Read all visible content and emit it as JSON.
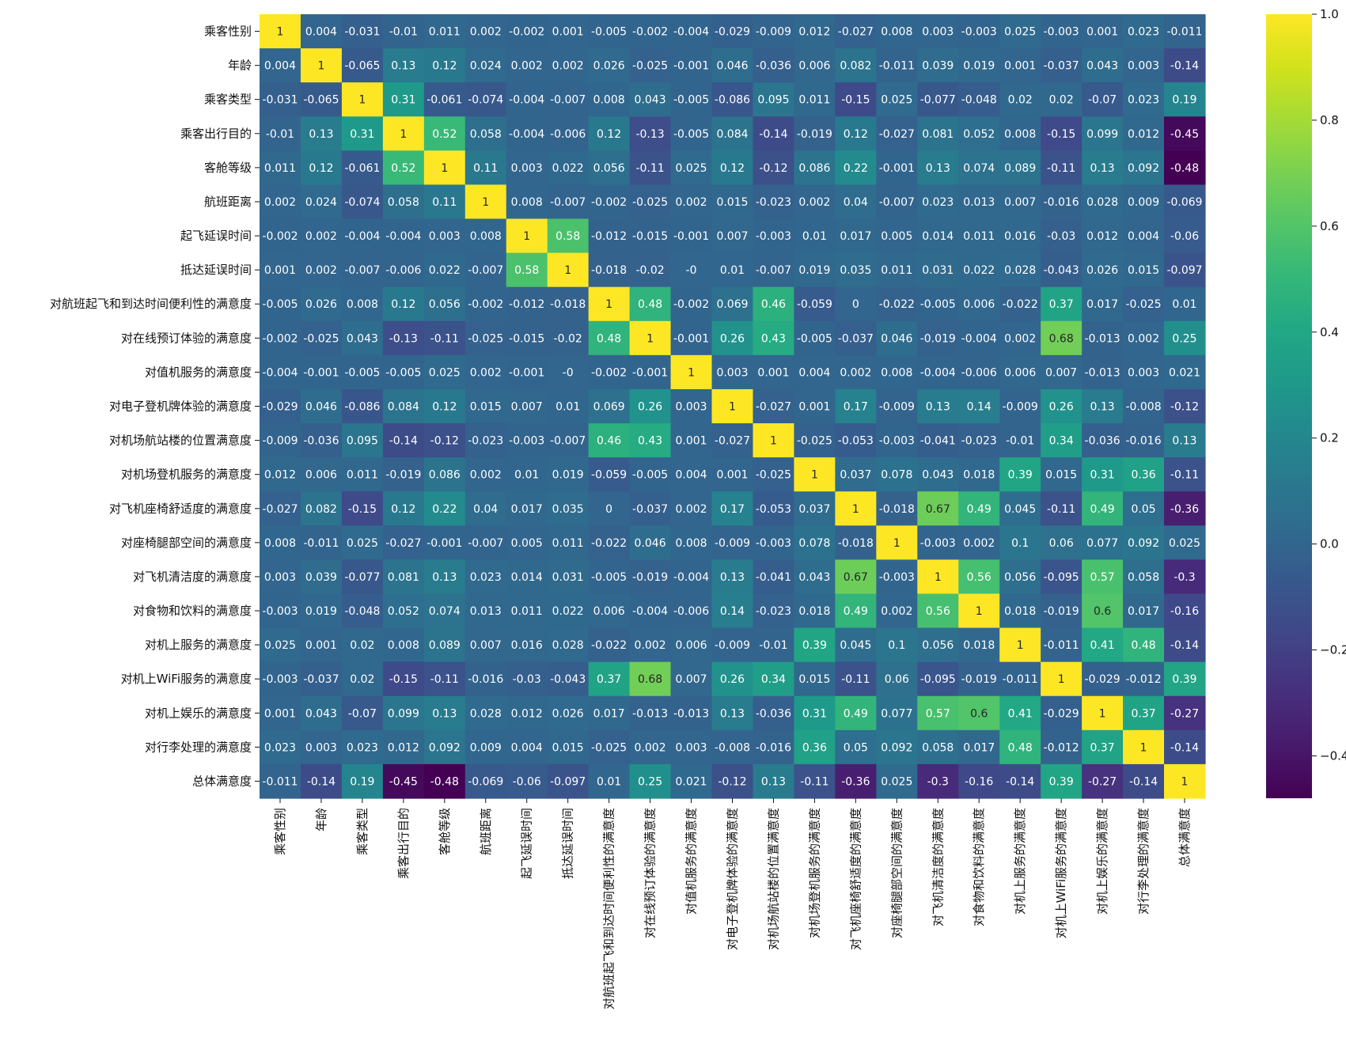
{
  "chart_data": {
    "type": "heatmap",
    "title": "",
    "labels": [
      "乘客性别",
      "年龄",
      "乘客类型",
      "乘客出行目的",
      "客舱等级",
      "航班距离",
      "起飞延误时间",
      "抵达延误时间",
      "对航班起飞和到达时间便利性的满意度",
      "对在线预订体验的满意度",
      "对值机服务的满意度",
      "对电子登机牌体验的满意度",
      "对机场航站楼的位置满意度",
      "对机场登机服务的满意度",
      "对飞机座椅舒适度的满意度",
      "对座椅腿部空间的满意度",
      "对飞机清洁度的满意度",
      "对食物和饮料的满意度",
      "对机上服务的满意度",
      "对机上WiFi服务的满意度",
      "对机上娱乐的满意度",
      "对行李处理的满意度",
      "总体满意度"
    ],
    "matrix": [
      [
        1,
        0.004,
        -0.031,
        -0.01,
        0.011,
        0.002,
        -0.002,
        0.001,
        -0.005,
        -0.002,
        -0.004,
        -0.029,
        -0.009,
        0.012,
        -0.027,
        0.008,
        0.003,
        -0.003,
        0.025,
        -0.003,
        0.001,
        0.023,
        -0.011
      ],
      [
        0.004,
        1,
        -0.065,
        0.13,
        0.12,
        0.024,
        0.002,
        0.002,
        0.026,
        -0.025,
        -0.001,
        0.046,
        -0.036,
        0.006,
        0.082,
        -0.011,
        0.039,
        0.019,
        0.001,
        -0.037,
        0.043,
        0.003,
        -0.14
      ],
      [
        -0.031,
        -0.065,
        1,
        0.31,
        -0.061,
        -0.074,
        -0.004,
        -0.007,
        0.008,
        0.043,
        -0.005,
        -0.086,
        0.095,
        0.011,
        -0.15,
        0.025,
        -0.077,
        -0.048,
        0.02,
        0.02,
        -0.07,
        0.023,
        0.19
      ],
      [
        -0.01,
        0.13,
        0.31,
        1,
        0.52,
        0.058,
        -0.004,
        -0.006,
        0.12,
        -0.13,
        -0.005,
        0.084,
        -0.14,
        -0.019,
        0.12,
        -0.027,
        0.081,
        0.052,
        0.008,
        -0.15,
        0.099,
        0.012,
        -0.45
      ],
      [
        0.011,
        0.12,
        -0.061,
        0.52,
        1,
        0.11,
        0.003,
        0.022,
        0.056,
        -0.11,
        0.025,
        0.12,
        -0.12,
        0.086,
        0.22,
        -0.001,
        0.13,
        0.074,
        0.089,
        -0.11,
        0.13,
        0.092,
        -0.48
      ],
      [
        0.002,
        0.024,
        -0.074,
        0.058,
        0.11,
        1,
        0.008,
        -0.007,
        -0.002,
        -0.025,
        0.002,
        0.015,
        -0.023,
        0.002,
        0.04,
        -0.007,
        0.023,
        0.013,
        0.007,
        -0.016,
        0.028,
        0.009,
        -0.069
      ],
      [
        -0.002,
        0.002,
        -0.004,
        -0.004,
        0.003,
        0.008,
        1,
        0.58,
        -0.012,
        -0.015,
        -0.001,
        0.007,
        -0.003,
        0.01,
        0.017,
        0.005,
        0.014,
        0.011,
        0.016,
        -0.03,
        0.012,
        0.004,
        -0.06
      ],
      [
        0.001,
        0.002,
        -0.007,
        -0.006,
        0.022,
        -0.007,
        0.58,
        1,
        -0.018,
        -0.02,
        0,
        0.01,
        -0.007,
        0.019,
        0.035,
        0.011,
        0.031,
        0.022,
        0.028,
        -0.043,
        0.026,
        0.015,
        -0.097
      ],
      [
        -0.005,
        0.026,
        0.008,
        0.12,
        0.056,
        -0.002,
        -0.012,
        -0.018,
        1,
        0.48,
        -0.002,
        0.069,
        0.46,
        -0.059,
        0,
        -0.022,
        -0.005,
        0.006,
        -0.022,
        0.37,
        0.017,
        -0.025,
        0.01
      ],
      [
        -0.002,
        -0.025,
        0.043,
        -0.13,
        -0.11,
        -0.025,
        -0.015,
        -0.02,
        0.48,
        1,
        -0.001,
        0.26,
        0.43,
        -0.005,
        -0.037,
        0.046,
        -0.019,
        -0.004,
        0.002,
        0.68,
        -0.013,
        0.002,
        0.25
      ],
      [
        -0.004,
        -0.001,
        -0.005,
        -0.005,
        0.025,
        0.002,
        -0.001,
        0,
        -0.002,
        -0.001,
        1,
        0.003,
        0.001,
        0.004,
        0.002,
        0.008,
        -0.004,
        -0.006,
        0.006,
        0.007,
        -0.013,
        0.003,
        0.021
      ],
      [
        -0.029,
        0.046,
        -0.086,
        0.084,
        0.12,
        0.015,
        0.007,
        0.01,
        0.069,
        0.26,
        0.003,
        1,
        -0.027,
        0.001,
        0.17,
        -0.009,
        0.13,
        0.14,
        -0.009,
        0.26,
        0.13,
        -0.008,
        -0.12
      ],
      [
        -0.009,
        -0.036,
        0.095,
        -0.14,
        -0.12,
        -0.023,
        -0.003,
        -0.007,
        0.46,
        0.43,
        0.001,
        -0.027,
        1,
        -0.025,
        -0.053,
        -0.003,
        -0.041,
        -0.023,
        -0.01,
        0.34,
        -0.036,
        -0.016,
        0.13
      ],
      [
        0.012,
        0.006,
        0.011,
        -0.019,
        0.086,
        0.002,
        0.01,
        0.019,
        -0.059,
        -0.005,
        0.004,
        0.001,
        -0.025,
        1,
        0.037,
        0.078,
        0.043,
        0.018,
        0.39,
        0.015,
        0.31,
        0.36,
        -0.11
      ],
      [
        -0.027,
        0.082,
        -0.15,
        0.12,
        0.22,
        0.04,
        0.017,
        0.035,
        0,
        -0.037,
        0.002,
        0.17,
        -0.053,
        0.037,
        1,
        -0.018,
        0.67,
        0.49,
        0.045,
        -0.11,
        0.49,
        0.05,
        -0.36
      ],
      [
        0.008,
        -0.011,
        0.025,
        -0.027,
        -0.001,
        -0.007,
        0.005,
        0.011,
        -0.022,
        0.046,
        0.008,
        -0.009,
        -0.003,
        0.078,
        -0.018,
        1,
        -0.003,
        0.002,
        0.1,
        0.06,
        0.077,
        0.092,
        0.025
      ],
      [
        0.003,
        0.039,
        -0.077,
        0.081,
        0.13,
        0.023,
        0.014,
        0.031,
        -0.005,
        -0.019,
        -0.004,
        0.13,
        -0.041,
        0.043,
        0.67,
        -0.003,
        1,
        0.56,
        0.056,
        -0.095,
        0.57,
        0.058,
        -0.3
      ],
      [
        -0.003,
        0.019,
        -0.048,
        0.052,
        0.074,
        0.013,
        0.011,
        0.022,
        0.006,
        -0.004,
        -0.006,
        0.14,
        -0.023,
        0.018,
        0.49,
        0.002,
        0.56,
        1,
        0.018,
        -0.019,
        0.6,
        0.017,
        -0.16
      ],
      [
        0.025,
        0.001,
        0.02,
        0.008,
        0.089,
        0.007,
        0.016,
        0.028,
        -0.022,
        0.002,
        0.006,
        -0.009,
        -0.01,
        0.39,
        0.045,
        0.1,
        0.056,
        0.018,
        1,
        -0.011,
        0.41,
        0.48,
        -0.14
      ],
      [
        -0.003,
        -0.037,
        0.02,
        -0.15,
        -0.11,
        -0.016,
        -0.03,
        -0.043,
        0.37,
        0.68,
        0.007,
        0.26,
        0.34,
        0.015,
        -0.11,
        0.06,
        -0.095,
        -0.019,
        -0.011,
        1,
        -0.029,
        -0.012,
        0.39
      ],
      [
        0.001,
        0.043,
        -0.07,
        0.099,
        0.13,
        0.028,
        0.012,
        0.026,
        0.017,
        -0.013,
        -0.013,
        0.13,
        -0.036,
        0.31,
        0.49,
        0.077,
        0.57,
        0.6,
        0.41,
        -0.029,
        1,
        0.37,
        -0.27
      ],
      [
        0.023,
        0.003,
        0.023,
        0.012,
        0.092,
        0.009,
        0.004,
        0.015,
        -0.025,
        0.002,
        0.003,
        -0.008,
        -0.016,
        0.36,
        0.05,
        0.092,
        0.058,
        0.017,
        0.48,
        -0.012,
        0.37,
        1,
        -0.14
      ],
      [
        -0.011,
        -0.14,
        0.19,
        -0.45,
        -0.48,
        -0.069,
        -0.06,
        -0.097,
        0.01,
        0.25,
        0.021,
        -0.12,
        0.13,
        -0.11,
        -0.36,
        0.025,
        -0.3,
        -0.16,
        -0.14,
        0.39,
        -0.27,
        -0.14,
        1
      ]
    ],
    "colormap": "viridis",
    "vmin": -0.48,
    "vmax": 1.0,
    "colorbar_ticks": [
      1.0,
      0.8,
      0.6,
      0.4,
      0.2,
      0.0,
      -0.2,
      -0.4
    ],
    "colorbar_tick_labels": [
      "1.0",
      "0.8",
      "0.6",
      "0.4",
      "0.2",
      "0.0",
      "−0.2",
      "−0.4"
    ],
    "grid": false,
    "legend": "colorbar-right"
  }
}
